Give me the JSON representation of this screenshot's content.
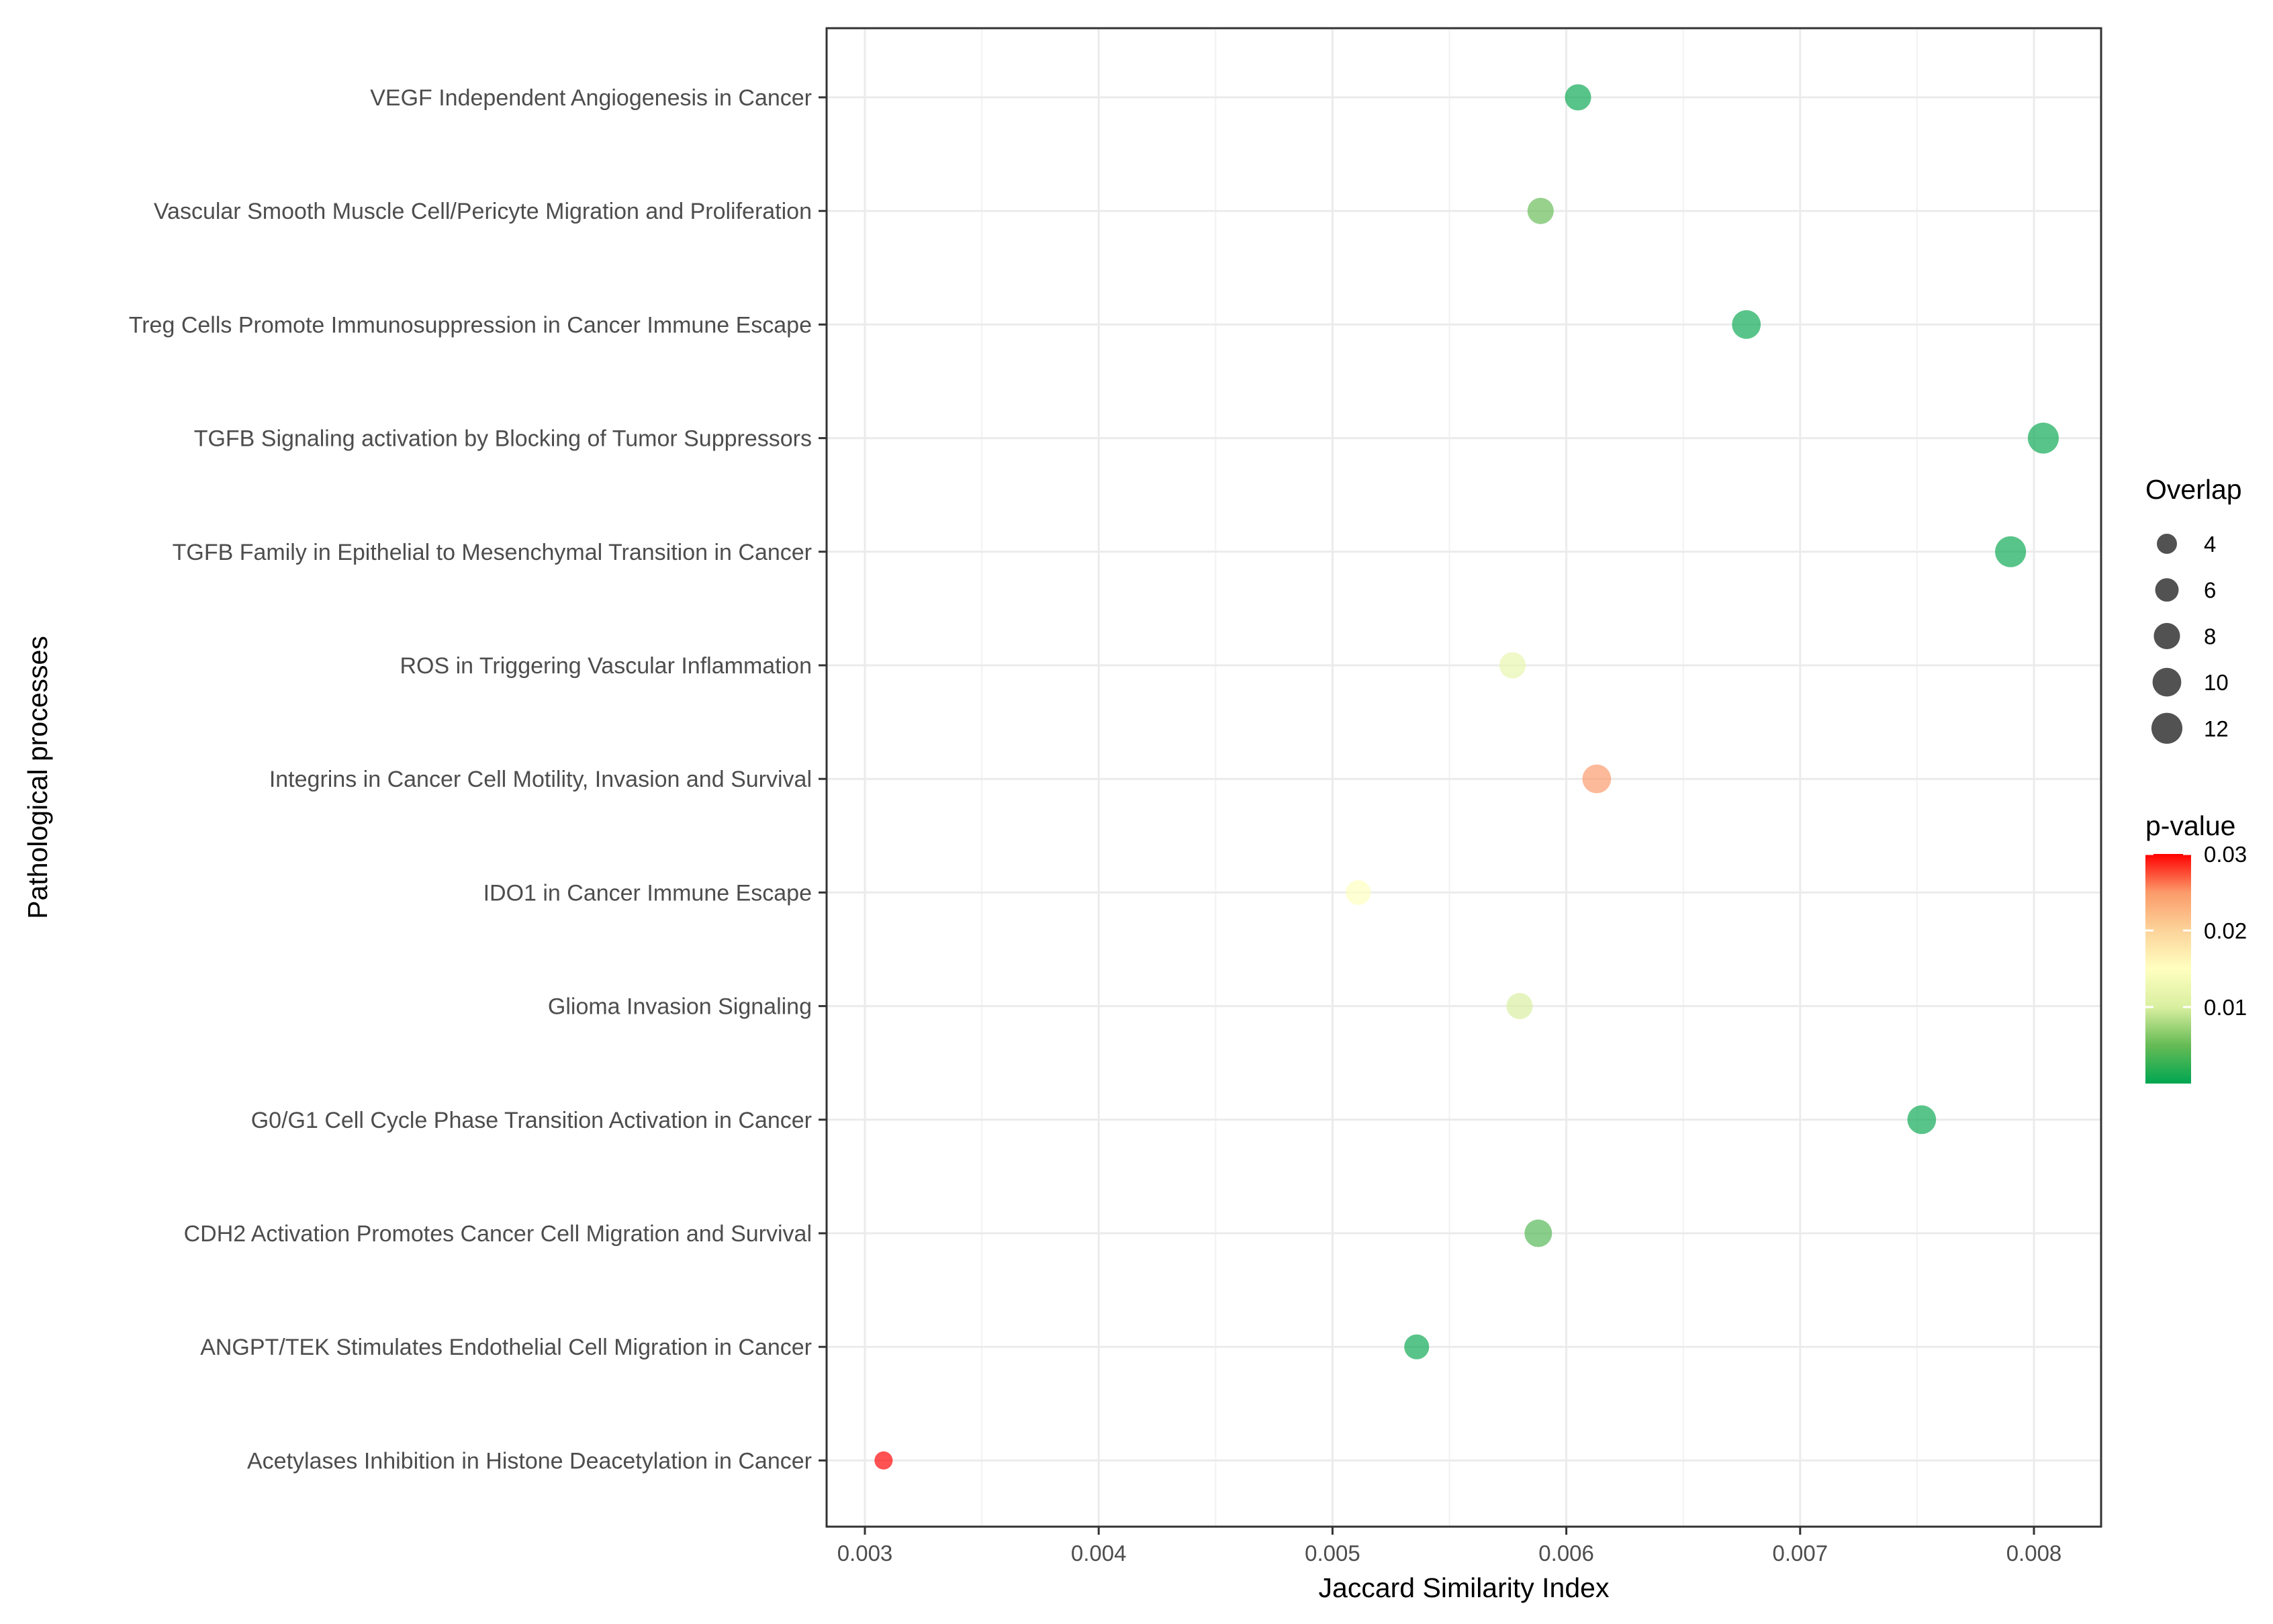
{
  "chart_data": {
    "type": "scatter",
    "xlabel": "Jaccard Similarity Index",
    "ylabel": "Pathological processes",
    "xlim": [
      0.00284,
      0.00831
    ],
    "xticks": [
      "0.003",
      "0.004",
      "0.005",
      "0.006",
      "0.007",
      "0.008"
    ],
    "xtick_values": [
      0.003,
      0.004,
      0.005,
      0.006,
      0.007,
      0.008
    ],
    "grid": true,
    "legend_placement": "right",
    "categories": [
      "VEGF Independent Angiogenesis in Cancer",
      "Vascular Smooth Muscle Cell/Pericyte Migration and Proliferation",
      "Treg Cells Promote Immunosuppression in Cancer Immune Escape",
      "TGFB Signaling activation by Blocking of Tumor Suppressors",
      "TGFB Family in Epithelial to Mesenchymal Transition in Cancer",
      "ROS in Triggering Vascular Inflammation",
      "Integrins in Cancer Cell Motility, Invasion and Survival",
      "IDO1 in Cancer Immune Escape",
      "Glioma Invasion Signaling",
      "G0/G1 Cell Cycle Phase Transition Activation in Cancer",
      "CDH2 Activation Promotes Cancer Cell Migration and Survival",
      "ANGPT/TEK Stimulates Endothelial Cell Migration in Cancer",
      "Acetylases Inhibition in Histone Deacetylation in Cancer"
    ],
    "points": [
      {
        "x": 0.00605,
        "overlap": 8,
        "pvalue": 0.0005
      },
      {
        "x": 0.00589,
        "overlap": 8,
        "pvalue": 0.005
      },
      {
        "x": 0.00677,
        "overlap": 10,
        "pvalue": 0.0005
      },
      {
        "x": 0.00804,
        "overlap": 12,
        "pvalue": 0.0005
      },
      {
        "x": 0.0079,
        "overlap": 12,
        "pvalue": 0.0005
      },
      {
        "x": 0.00577,
        "overlap": 8,
        "pvalue": 0.012
      },
      {
        "x": 0.00613,
        "overlap": 10,
        "pvalue": 0.025
      },
      {
        "x": 0.00511,
        "overlap": 7,
        "pvalue": 0.015
      },
      {
        "x": 0.0058,
        "overlap": 8,
        "pvalue": 0.01
      },
      {
        "x": 0.00752,
        "overlap": 10,
        "pvalue": 0.0005
      },
      {
        "x": 0.00588,
        "overlap": 9,
        "pvalue": 0.004
      },
      {
        "x": 0.00536,
        "overlap": 7,
        "pvalue": 0.0005
      },
      {
        "x": 0.00308,
        "overlap": 3,
        "pvalue": 0.03
      }
    ],
    "size_legend": {
      "title": "Overlap",
      "values": [
        4,
        6,
        8,
        10,
        12
      ]
    },
    "color_legend": {
      "title": "p-value",
      "ticks": [
        "0.03",
        "0.02",
        "0.01"
      ],
      "tick_values": [
        0.03,
        0.02,
        0.01
      ],
      "range": [
        0,
        0.03
      ],
      "colors": [
        "#00A651",
        "#66BB55",
        "#D9EFA0",
        "#FFFFC0",
        "#FCD39A",
        "#FB9A6A",
        "#FF0000"
      ]
    },
    "point_alpha": 0.68
  }
}
